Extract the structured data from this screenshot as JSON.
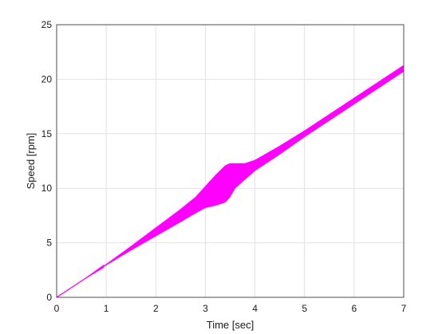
{
  "chart_data": {
    "type": "line",
    "title": "",
    "xlabel": "Time [sec]",
    "ylabel": "Speed [rpm]",
    "xlim": [
      0,
      7
    ],
    "ylim": [
      0,
      25
    ],
    "xticks": [
      0,
      1,
      2,
      3,
      4,
      5,
      6,
      7
    ],
    "yticks": [
      0,
      5,
      10,
      15,
      20,
      25
    ],
    "grid": true,
    "legend": "none",
    "series": [
      {
        "color": "#ff00ff",
        "x": [
          0,
          0.5,
          1.0,
          1.5,
          2.0,
          2.5,
          2.8,
          3.0,
          3.2,
          3.4,
          3.5,
          3.6,
          3.8,
          4.0,
          4.5,
          5.0,
          5.5,
          6.0,
          6.5,
          7.0
        ],
        "y_center": [
          0,
          1.5,
          3.0,
          4.5,
          6.0,
          7.5,
          8.4,
          9.0,
          9.6,
          10.2,
          10.5,
          10.8,
          11.5,
          12.1,
          13.5,
          15.0,
          16.5,
          18.0,
          19.5,
          21.0
        ],
        "y_upper": [
          0,
          1.5,
          3.05,
          4.7,
          6.4,
          8.1,
          9.2,
          10.2,
          11.2,
          12.1,
          12.3,
          12.3,
          12.3,
          12.6,
          13.9,
          15.3,
          16.8,
          18.3,
          19.8,
          21.3
        ],
        "y_lower": [
          0,
          1.5,
          2.95,
          4.3,
          5.6,
          6.9,
          7.7,
          8.2,
          8.4,
          8.7,
          9.2,
          10.0,
          10.8,
          11.6,
          13.1,
          14.7,
          16.2,
          17.7,
          19.2,
          20.7
        ]
      }
    ]
  }
}
